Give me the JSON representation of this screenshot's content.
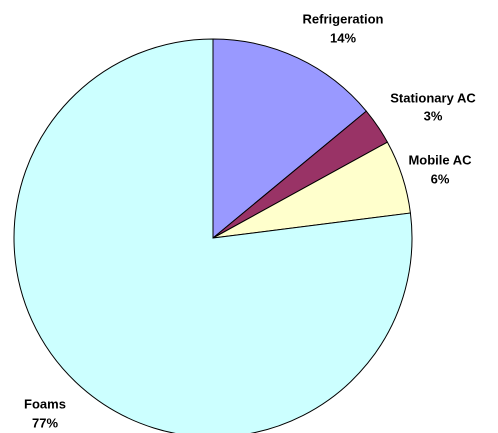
{
  "chart_data": {
    "type": "pie",
    "categories": [
      "Refrigeration",
      "Stationary AC",
      "Mobile AC",
      "Foams"
    ],
    "values": [
      14,
      3,
      6,
      77
    ],
    "value_labels": [
      "14%",
      "3%",
      "6%",
      "77%"
    ],
    "colors": [
      "#9999ff",
      "#993366",
      "#ffffcc",
      "#ccffff"
    ]
  }
}
